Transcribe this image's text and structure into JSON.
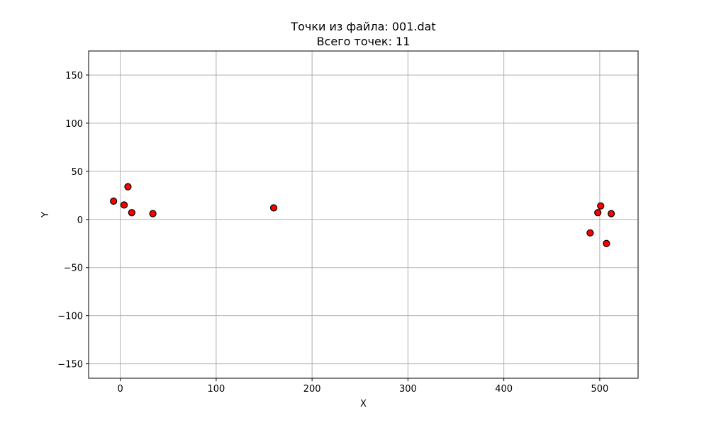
{
  "chart_data": {
    "type": "scatter",
    "title_line1": "Точки из файла: 001.dat",
    "title_line2": "Всего точек: 11",
    "xlabel": "X",
    "ylabel": "Y",
    "xlim": [
      -33,
      540
    ],
    "ylim": [
      -165,
      175
    ],
    "xticks": [
      0,
      100,
      200,
      300,
      400,
      500
    ],
    "yticks": [
      -150,
      -100,
      -50,
      0,
      50,
      100,
      150
    ],
    "xtick_labels": [
      "0",
      "100",
      "200",
      "300",
      "400",
      "500"
    ],
    "ytick_labels": [
      "−150",
      "−100",
      "−50",
      "0",
      "50",
      "100",
      "150"
    ],
    "grid": true,
    "marker_color": "#ff0000",
    "marker_edge_color": "#000000",
    "grid_color": "#b0b0b0",
    "points": [
      {
        "x": -7,
        "y": 19
      },
      {
        "x": 4,
        "y": 15
      },
      {
        "x": 8,
        "y": 34
      },
      {
        "x": 12,
        "y": 7
      },
      {
        "x": 34,
        "y": 6
      },
      {
        "x": 160,
        "y": 12
      },
      {
        "x": 490,
        "y": -14
      },
      {
        "x": 498,
        "y": 7
      },
      {
        "x": 501,
        "y": 14
      },
      {
        "x": 507,
        "y": -25
      },
      {
        "x": 512,
        "y": 6
      }
    ]
  }
}
